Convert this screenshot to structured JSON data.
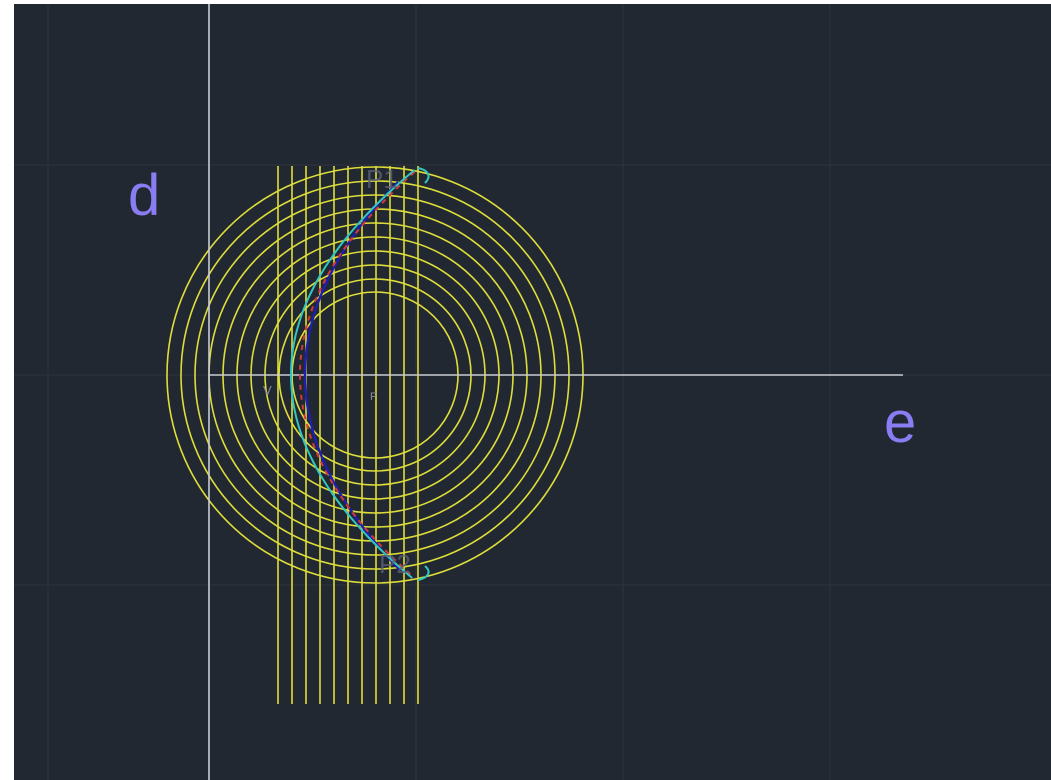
{
  "labels": {
    "directrix": "d",
    "axis": "e",
    "vertex": "V",
    "focus": "F",
    "point_1": "P1",
    "point_2": "P2"
  },
  "colors": {
    "background": "#222831",
    "grid": "#2c333d",
    "construction_lines": "#dede3a",
    "axis_lines": "#c9cdd3",
    "label_text": "#8a7cf2",
    "small_label": "#8a8d9c",
    "parabola_true": "#31c6c0",
    "parabola_offset": "#1c1fb0",
    "construction_points": "#d23a3a"
  }
}
